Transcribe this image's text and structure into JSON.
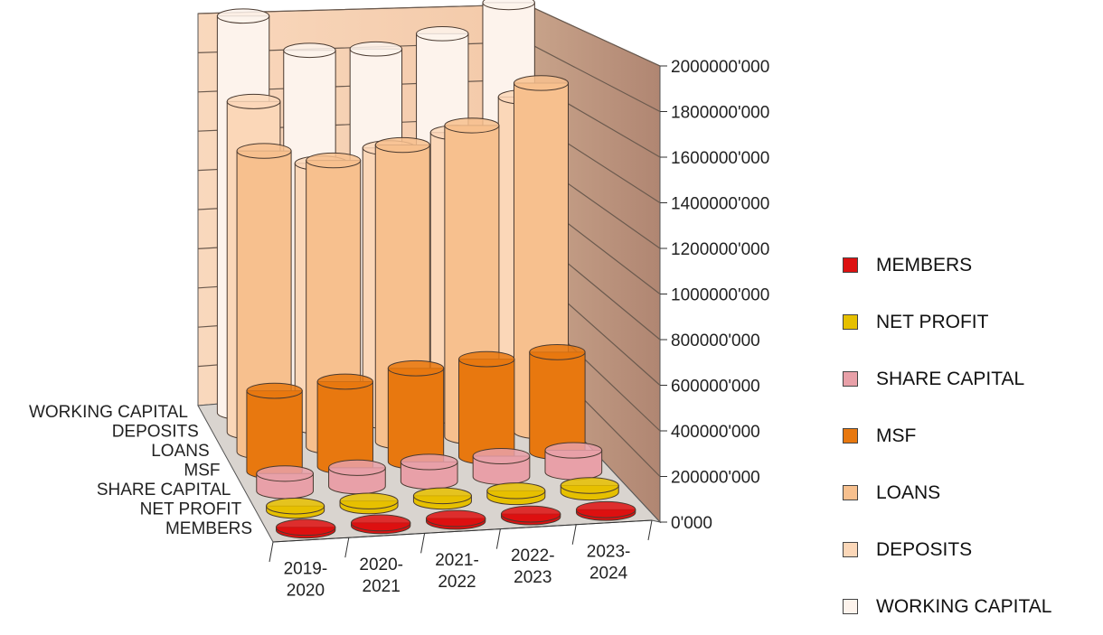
{
  "chart_data": {
    "type": "bar",
    "style": "3d-cylinder",
    "categories": [
      "2019-2020",
      "2020-2021",
      "2021-2022",
      "2022-2023",
      "2023-2024"
    ],
    "y_ticks": [
      "0'000",
      "200000'000",
      "400000'000",
      "600000'000",
      "800000'000",
      "1000000'000",
      "1200000'000",
      "1400000'000",
      "1600000'000",
      "1800000'000",
      "2000000'000"
    ],
    "ylim": [
      0,
      2000000000
    ],
    "grid": true,
    "legend_position": "right",
    "series": [
      {
        "name": "MEMBERS",
        "color": "#dd1111",
        "values": [
          10000,
          10500,
          11000,
          11500,
          12000
        ]
      },
      {
        "name": "NET PROFIT",
        "color": "#e6c000",
        "values": [
          20000000,
          22000000,
          25000000,
          27000000,
          30000000
        ]
      },
      {
        "name": "SHARE CAPITAL",
        "color": "#e8a0a8",
        "values": [
          80000000,
          85000000,
          90000000,
          95000000,
          100000000
        ]
      },
      {
        "name": "MSF",
        "color": "#e8780f",
        "values": [
          380000000,
          400000000,
          440000000,
          460000000,
          470000000
        ]
      },
      {
        "name": "LOANS",
        "color": "#f7c08e",
        "values": [
          1450000000,
          1380000000,
          1430000000,
          1500000000,
          1680000000
        ]
      },
      {
        "name": "DEPOSITS",
        "color": "#fbd7b8",
        "values": [
          1630000000,
          1300000000,
          1350000000,
          1400000000,
          1550000000
        ]
      },
      {
        "name": "WORKING CAPITAL",
        "color": "#fdf3ec",
        "values": [
          2000000000,
          1800000000,
          1780000000,
          1830000000,
          1960000000
        ]
      }
    ]
  }
}
